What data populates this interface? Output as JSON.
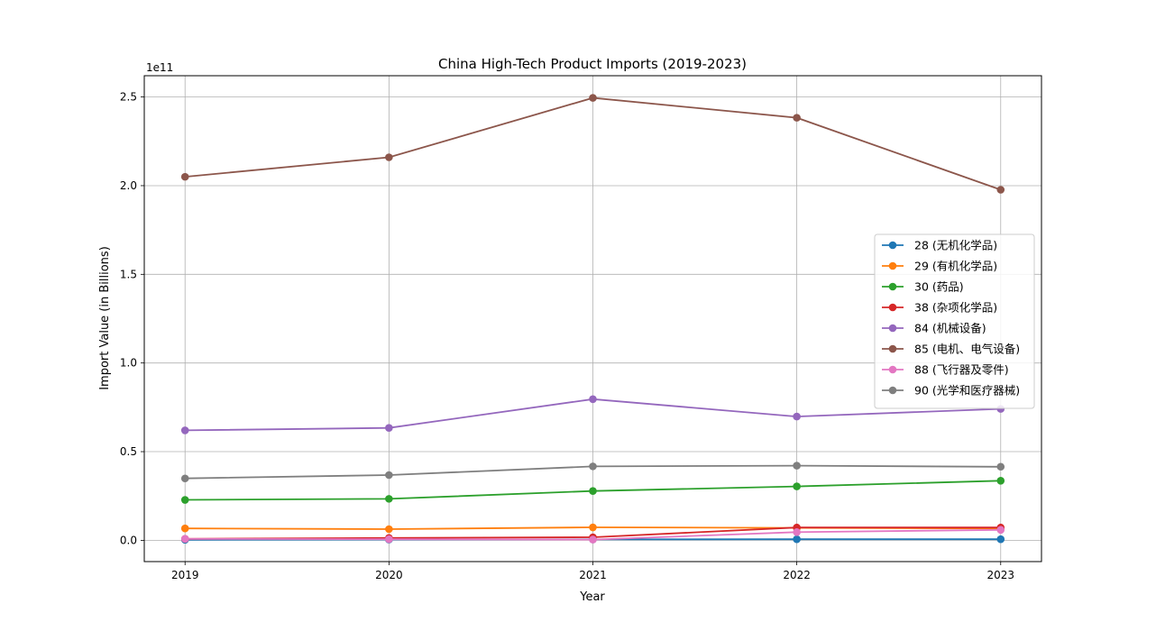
{
  "chart_data": {
    "type": "line",
    "title": "China High-Tech Product Imports (2019-2023)",
    "xlabel": "Year",
    "ylabel": "Import Value (in Billions)",
    "y_offset_text": "1e11",
    "x": [
      2019,
      2020,
      2021,
      2022,
      2023
    ],
    "x_tick_labels": [
      "2019",
      "2020",
      "2021",
      "2022",
      "2023"
    ],
    "y_ticks": [
      0,
      50000000000,
      100000000000,
      150000000000,
      200000000000,
      250000000000
    ],
    "y_tick_labels": [
      "0.0",
      "0.5",
      "1.0",
      "1.5",
      "2.0",
      "2.5"
    ],
    "ylim": [
      -12000000000,
      262000000000
    ],
    "grid": true,
    "legend_position": "center-right",
    "marker": "circle",
    "series": [
      {
        "name": "28 (无机化学品)",
        "color": "#1f77b4",
        "values": [
          300000000,
          400000000,
          500000000,
          600000000,
          600000000
        ]
      },
      {
        "name": "29 (有机化学品)",
        "color": "#ff7f0e",
        "values": [
          6700000000,
          6300000000,
          7300000000,
          7000000000,
          6700000000
        ]
      },
      {
        "name": "30 (药品)",
        "color": "#2ca02c",
        "values": [
          22800000000,
          23400000000,
          27800000000,
          30400000000,
          33600000000
        ]
      },
      {
        "name": "38 (杂项化学品)",
        "color": "#d62728",
        "values": [
          800000000,
          1300000000,
          1700000000,
          7200000000,
          7200000000
        ]
      },
      {
        "name": "84 (机械设备)",
        "color": "#9467bd",
        "values": [
          62000000000,
          63400000000,
          79600000000,
          69800000000,
          74100000000
        ]
      },
      {
        "name": "85 (电机、电气设备)",
        "color": "#8c564b",
        "values": [
          205000000000,
          216000000000,
          249500000000,
          238300000000,
          197700000000
        ]
      },
      {
        "name": "88 (飞行器及零件)",
        "color": "#e377c2",
        "values": [
          800000000,
          600000000,
          400000000,
          4600000000,
          5900000000
        ]
      },
      {
        "name": "90 (光学和医疗器械)",
        "color": "#7f7f7f",
        "values": [
          34900000000,
          36800000000,
          41700000000,
          42100000000,
          41500000000
        ]
      }
    ]
  }
}
